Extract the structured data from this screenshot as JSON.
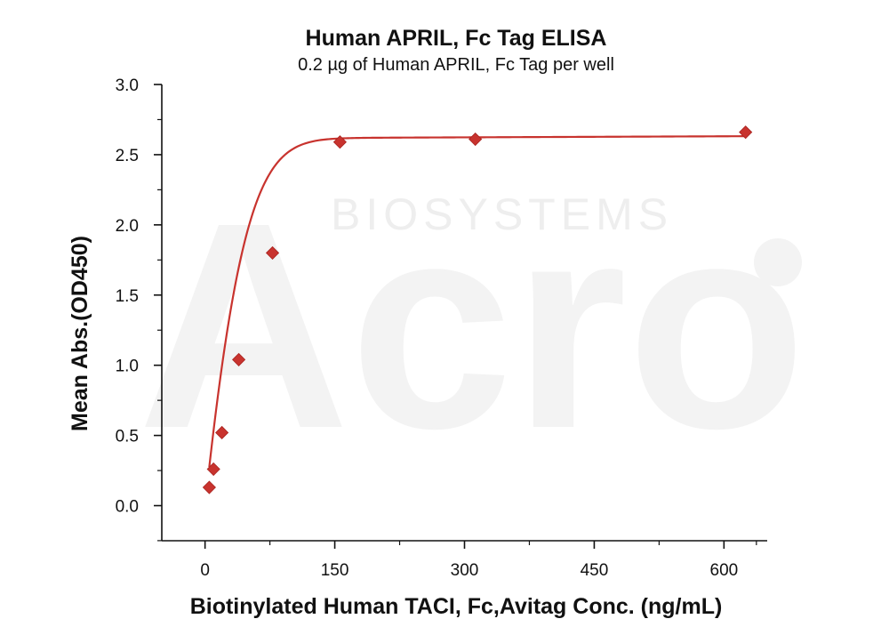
{
  "chart_data": {
    "type": "scatter",
    "title": "Human APRIL, Fc Tag ELISA",
    "subtitle": "0.2 µg of Human APRIL, Fc Tag per well",
    "xlabel": "Biotinylated Human TACI, Fc,Avitag Conc. (ng/mL)",
    "ylabel": "Mean Abs.(OD450)",
    "xlim": [
      -50,
      650
    ],
    "ylim": [
      -0.25,
      3.0
    ],
    "x_ticks": [
      0,
      150,
      300,
      450,
      600
    ],
    "y_ticks": [
      0.0,
      0.5,
      1.0,
      1.5,
      2.0,
      2.5,
      3.0
    ],
    "x_tick_labels": [
      "0",
      "150",
      "300",
      "450",
      "600"
    ],
    "y_tick_labels": [
      "0.0",
      "0.5",
      "1.0",
      "1.5",
      "2.0",
      "2.5",
      "3.0"
    ],
    "grid": false,
    "series": [
      {
        "color": "#c8332e",
        "marker": "diamond",
        "x": [
          4.9,
          9.8,
          19.5,
          39,
          78,
          156,
          312.5,
          625
        ],
        "y": [
          0.13,
          0.26,
          0.52,
          1.04,
          1.8,
          2.59,
          2.61,
          2.66
        ],
        "fit": "sigmoidal"
      }
    ]
  },
  "watermark": {
    "text_large": "Acro",
    "text_small": "BIOSYSTEMS"
  }
}
